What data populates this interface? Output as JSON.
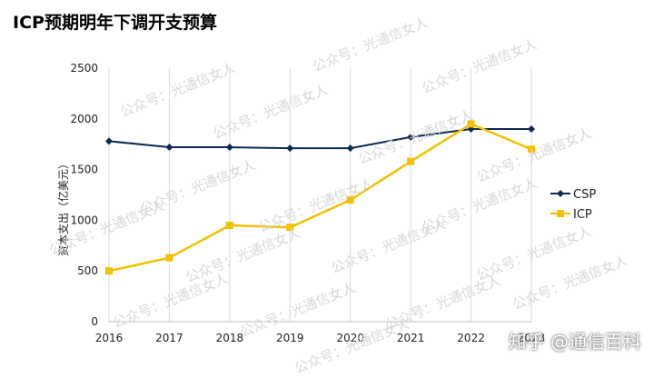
{
  "page": {
    "title": "ICP预期明年下调开支预算",
    "watermark": "公众号：光通信女人",
    "footer_mark": "知乎 @通信百科"
  },
  "chart_data": {
    "type": "line",
    "title": "ICP预期明年下调开支预算",
    "xlabel": "",
    "ylabel": "资本支出（亿美元）",
    "x": [
      "2016",
      "2017",
      "2018",
      "2019",
      "2020",
      "2021",
      "2022",
      "2023"
    ],
    "ylim": [
      0,
      2500
    ],
    "yticks": [
      0,
      500,
      1000,
      1500,
      2000,
      2500
    ],
    "grid": "vertical",
    "legend": "right",
    "series": [
      {
        "name": "CSP",
        "values": [
          1780,
          1720,
          1720,
          1710,
          1710,
          1820,
          1900,
          1900
        ],
        "color": "#0d2a52",
        "marker": "diamond"
      },
      {
        "name": "ICP",
        "values": [
          500,
          630,
          950,
          930,
          1200,
          1580,
          1950,
          1700
        ],
        "color": "#f2c100",
        "marker": "square"
      }
    ]
  }
}
